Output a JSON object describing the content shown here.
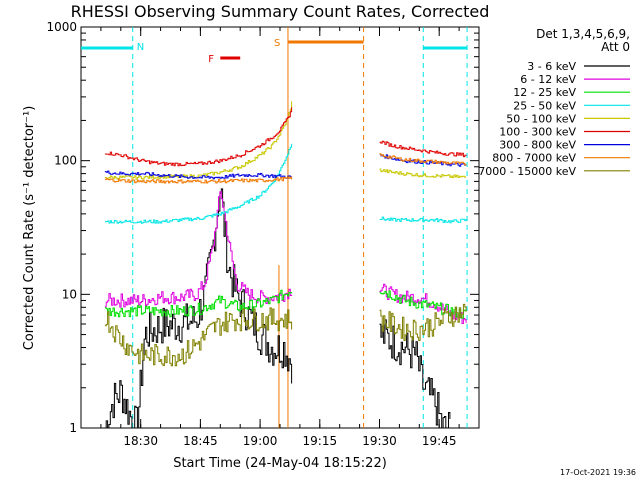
{
  "chart_data": {
    "type": "line",
    "title": "RHESSI Observing Summary Count Rates, Corrected",
    "xlabel": "Start Time (24-May-04 18:15:22)",
    "ylabel": "Corrected Count Rate (s⁻¹ detector⁻¹)",
    "yscale": "log",
    "ylim": [
      1,
      1000
    ],
    "xlim": [
      "18:15",
      "19:55"
    ],
    "x_ticks": [
      "18:30",
      "18:45",
      "19:00",
      "19:15",
      "19:30",
      "19:45"
    ],
    "y_ticks": [
      "1",
      "10",
      "100",
      "1000"
    ],
    "footer_date": "17-Oct-2021 19:36",
    "legend": {
      "header_line1": "Det 1,3,4,5,6,9,",
      "header_line2": "Att 0",
      "placement": "right"
    },
    "markers": {
      "night_label": "N",
      "flare_label": "F",
      "saa_label": "S",
      "night_color": "#00e5e5",
      "flare_color": "#e00000",
      "saa_color": "#f07800",
      "night_intervals": [
        [
          "18:15",
          "18:28"
        ],
        [
          "19:41",
          "19:52"
        ]
      ],
      "flare_interval": [
        "18:50",
        "18:55"
      ],
      "saa_interval": [
        "19:07",
        "19:26"
      ]
    },
    "series": [
      {
        "name": "3 - 6 keV",
        "color": "#000000",
        "segments": [
          {
            "x": [
              "18:21",
              "18:23",
              "18:25",
              "18:27",
              "18:29",
              "18:31",
              "18:35",
              "18:40",
              "18:44",
              "18:46",
              "18:48",
              "18:50",
              "18:51",
              "18:52",
              "18:54",
              "18:57",
              "19:00",
              "19:03",
              "19:06",
              "19:08"
            ],
            "y": [
              1.0,
              1.6,
              1.9,
              1.3,
              1.0,
              5.0,
              5.8,
              6.0,
              6.5,
              10,
              22,
              65,
              30,
              16,
              10,
              7,
              5,
              4,
              4,
              3
            ]
          },
          {
            "x": [
              "19:30",
              "19:33",
              "19:36",
              "19:39",
              "19:41",
              "19:44",
              "19:46",
              "19:48"
            ],
            "y": [
              5.0,
              4.5,
              4.0,
              3.5,
              2.0,
              1.5,
              1.0,
              1.0
            ]
          }
        ]
      },
      {
        "name": "6 - 12 keV",
        "color": "#e000e0",
        "segments": [
          {
            "x": [
              "18:21",
              "18:25",
              "18:30",
              "18:35",
              "18:40",
              "18:44",
              "18:46",
              "18:48",
              "18:50",
              "18:52",
              "18:54",
              "18:57",
              "19:00",
              "19:03",
              "19:06",
              "19:08"
            ],
            "y": [
              9.0,
              9.0,
              9.0,
              9.5,
              9.5,
              10,
              12,
              22,
              60,
              25,
              12,
              10,
              9.5,
              9.5,
              10,
              11
            ]
          },
          {
            "x": [
              "19:30",
              "19:33",
              "19:36",
              "19:40",
              "19:44",
              "19:48",
              "19:52"
            ],
            "y": [
              11,
              10,
              9.5,
              9.5,
              8.5,
              7.0,
              6.5
            ]
          }
        ]
      },
      {
        "name": "12 - 25 keV",
        "color": "#00e000",
        "segments": [
          {
            "x": [
              "18:21",
              "18:25",
              "18:30",
              "18:35",
              "18:40",
              "18:45",
              "18:48",
              "18:50",
              "18:52",
              "18:55",
              "19:00",
              "19:03",
              "19:06",
              "19:08"
            ],
            "y": [
              7.5,
              7.5,
              7.5,
              7.5,
              7.5,
              7.8,
              8.5,
              9.0,
              8.5,
              8.0,
              8.5,
              9.0,
              10,
              11
            ]
          },
          {
            "x": [
              "19:30",
              "19:33",
              "19:36",
              "19:40",
              "19:44",
              "19:48",
              "19:52"
            ],
            "y": [
              11,
              10,
              9.0,
              8.5,
              8.0,
              7.5,
              7.0
            ]
          }
        ]
      },
      {
        "name": "25 - 50 keV",
        "color": "#00e5e5",
        "segments": [
          {
            "x": [
              "18:21",
              "18:25",
              "18:30",
              "18:35",
              "18:40",
              "18:45",
              "18:50",
              "18:55",
              "19:00",
              "19:03",
              "19:05",
              "19:07",
              "19:08"
            ],
            "y": [
              35,
              35,
              35,
              35,
              36,
              37,
              40,
              46,
              55,
              68,
              85,
              115,
              140
            ]
          },
          {
            "x": [
              "19:30",
              "19:33",
              "19:36",
              "19:40",
              "19:44",
              "19:48",
              "19:52"
            ],
            "y": [
              37,
              36,
              36,
              36,
              36,
              35,
              36
            ]
          }
        ]
      },
      {
        "name": "50 - 100 keV",
        "color": "#c8c800",
        "segments": [
          {
            "x": [
              "18:21",
              "18:25",
              "18:30",
              "18:35",
              "18:40",
              "18:45",
              "18:50",
              "18:55",
              "19:00",
              "19:03",
              "19:05",
              "19:07",
              "19:08"
            ],
            "y": [
              75,
              75,
              75,
              76,
              76,
              77,
              82,
              90,
              110,
              130,
              160,
              210,
              280
            ]
          },
          {
            "x": [
              "19:30",
              "19:33",
              "19:36",
              "19:40",
              "19:44",
              "19:48",
              "19:52"
            ],
            "y": [
              85,
              82,
              80,
              78,
              77,
              76,
              75
            ]
          }
        ]
      },
      {
        "name": "100 - 300 keV",
        "color": "#e00000",
        "segments": [
          {
            "x": [
              "18:21",
              "18:25",
              "18:30",
              "18:35",
              "18:40",
              "18:45",
              "18:50",
              "18:55",
              "19:00",
              "19:03",
              "19:05",
              "19:07",
              "19:08"
            ],
            "y": [
              115,
              110,
              100,
              95,
              94,
              95,
              100,
              110,
              130,
              150,
              170,
              210,
              250
            ]
          },
          {
            "x": [
              "19:30",
              "19:33",
              "19:36",
              "19:40",
              "19:44",
              "19:48",
              "19:52"
            ],
            "y": [
              140,
              130,
              125,
              120,
              115,
              112,
              110
            ]
          }
        ]
      },
      {
        "name": "300 - 800 keV",
        "color": "#0000e0",
        "segments": [
          {
            "x": [
              "18:21",
              "18:25",
              "18:30",
              "18:35",
              "18:40",
              "18:45",
              "18:50",
              "18:55",
              "19:00",
              "19:03",
              "19:06",
              "19:08"
            ],
            "y": [
              82,
              80,
              80,
              78,
              76,
              75,
              75,
              78,
              78,
              77,
              76,
              75
            ]
          },
          {
            "x": [
              "19:30",
              "19:33",
              "19:36",
              "19:40",
              "19:44",
              "19:48",
              "19:52"
            ],
            "y": [
              110,
              105,
              100,
              98,
              96,
              94,
              92
            ]
          }
        ]
      },
      {
        "name": "800 - 7000 keV",
        "color": "#f07800",
        "segments": [
          {
            "x": [
              "18:21",
              "18:25",
              "18:30",
              "18:35",
              "18:40",
              "18:45",
              "18:50",
              "18:55",
              "19:00",
              "19:03",
              "19:06",
              "19:08"
            ],
            "y": [
              72,
              71,
              70,
              70,
              70,
              70,
              70,
              71,
              71,
              72,
              73,
              74
            ]
          },
          {
            "x": [
              "19:30",
              "19:33",
              "19:36",
              "19:40",
              "19:44",
              "19:48",
              "19:52"
            ],
            "y": [
              110,
              106,
              102,
              100,
              98,
              96,
              94
            ]
          }
        ]
      },
      {
        "name": "7000 - 15000 keV",
        "color": "#808000",
        "segments": [
          {
            "x": [
              "18:21",
              "18:24",
              "18:27",
              "18:30",
              "18:33",
              "18:37",
              "18:41",
              "18:45",
              "18:48",
              "18:50",
              "18:53",
              "18:57",
              "19:00",
              "19:03",
              "19:06",
              "19:08"
            ],
            "y": [
              7.0,
              5.0,
              4.0,
              3.5,
              3.5,
              3.5,
              3.6,
              4.5,
              5.5,
              6.0,
              6.5,
              6.5,
              6.5,
              6.5,
              6.5,
              6.5
            ]
          },
          {
            "x": [
              "19:30",
              "19:33",
              "19:36",
              "19:40",
              "19:44",
              "19:48",
              "19:52"
            ],
            "y": [
              6.5,
              6.0,
              5.5,
              5.5,
              6.0,
              7.0,
              7.5
            ]
          }
        ]
      }
    ]
  }
}
